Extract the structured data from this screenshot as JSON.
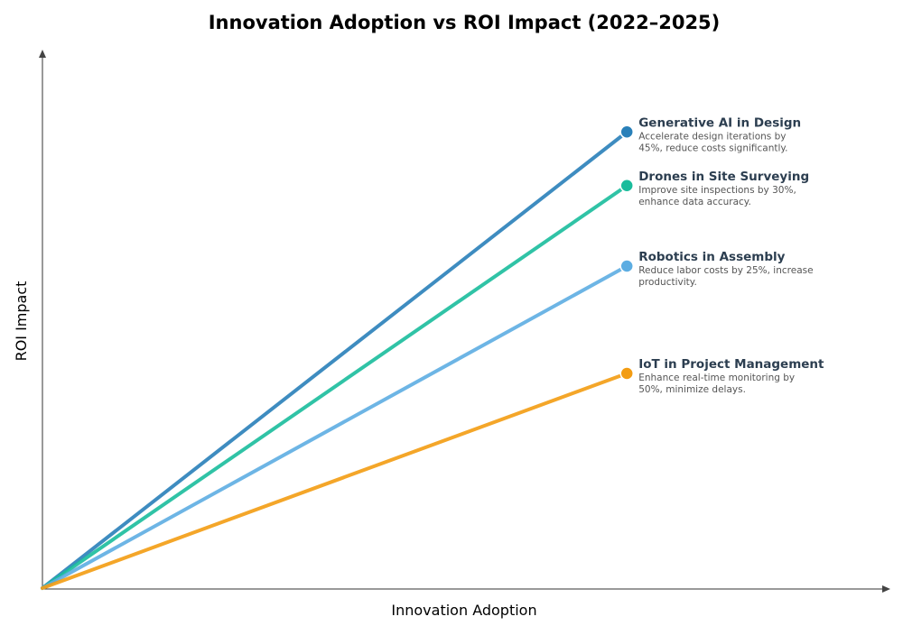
{
  "chart_data": {
    "type": "line",
    "title": "Innovation Adoption vs ROI Impact (2022–2025)",
    "xlabel": "Innovation Adoption",
    "ylabel": "ROI Impact",
    "xlim": [
      0,
      1
    ],
    "ylim": [
      0,
      1
    ],
    "grid": false,
    "legend": "none",
    "series": [
      {
        "name": "Generative AI in Design",
        "description": [
          "Accelerate design iterations by",
          "45%, reduce costs significantly."
        ],
        "x": [
          0,
          0.69
        ],
        "y": [
          0,
          0.85
        ],
        "color": "#2980b9"
      },
      {
        "name": "Drones in Site Surveying",
        "description": [
          "Improve site inspections by 30%,",
          "enhance data accuracy."
        ],
        "x": [
          0,
          0.69
        ],
        "y": [
          0,
          0.75
        ],
        "color": "#1abc9c"
      },
      {
        "name": "Robotics in Assembly",
        "description": [
          "Reduce labor costs by 25%, increase",
          "productivity."
        ],
        "x": [
          0,
          0.69
        ],
        "y": [
          0,
          0.6
        ],
        "color": "#5dade2"
      },
      {
        "name": "IoT in Project Management",
        "description": [
          "Enhance real-time monitoring by",
          "50%, minimize delays."
        ],
        "x": [
          0,
          0.69
        ],
        "y": [
          0,
          0.4
        ],
        "color": "#f39c12"
      }
    ]
  }
}
